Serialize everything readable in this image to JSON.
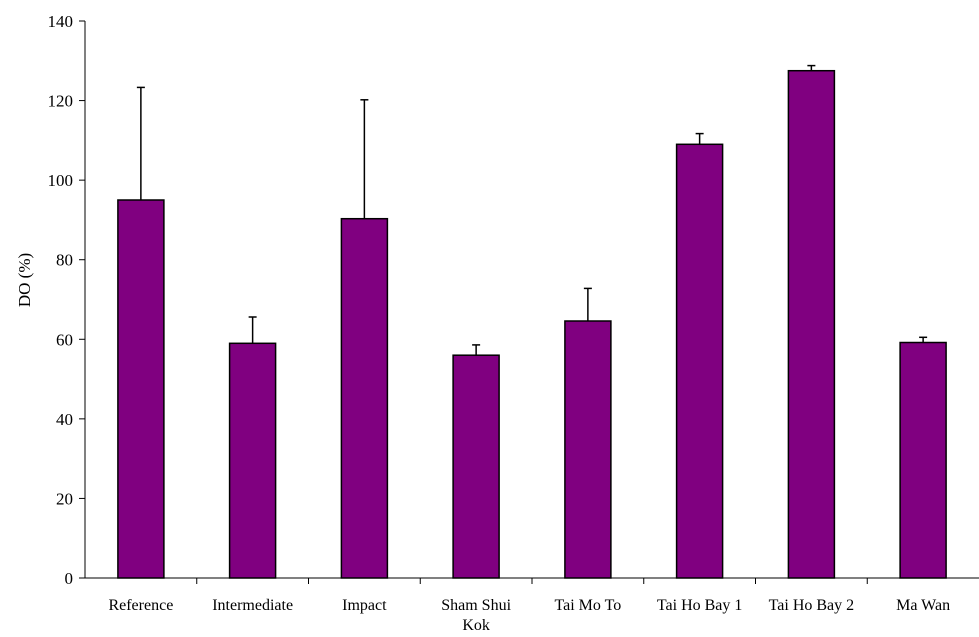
{
  "chart_data": {
    "type": "bar",
    "title": "",
    "xlabel": "",
    "ylabel": "DO (%)",
    "ylim": [
      0,
      140
    ],
    "yticks": [
      0,
      20,
      40,
      60,
      80,
      100,
      120,
      140
    ],
    "grid": false,
    "legend": "none",
    "categories": [
      "Reference",
      "Intermediate",
      "Impact",
      "Sham Shui Kok",
      "Tai Mo To",
      "Tai Ho Bay 1",
      "Tai Ho Bay 2",
      "Ma Wan"
    ],
    "category_lines": [
      [
        "Reference"
      ],
      [
        "Intermediate"
      ],
      [
        "Impact"
      ],
      [
        "Sham Shui",
        "Kok"
      ],
      [
        "Tai Mo To"
      ],
      [
        "Tai Ho Bay 1"
      ],
      [
        "Tai Ho Bay 2"
      ],
      [
        "Ma Wan"
      ]
    ],
    "values": [
      95,
      59,
      90.3,
      56,
      64.6,
      109,
      127.5,
      59.2
    ],
    "error_upper": [
      28.3,
      6.6,
      29.9,
      2.6,
      8.2,
      2.7,
      1.3,
      1.3
    ],
    "bar_color": "#800080"
  }
}
